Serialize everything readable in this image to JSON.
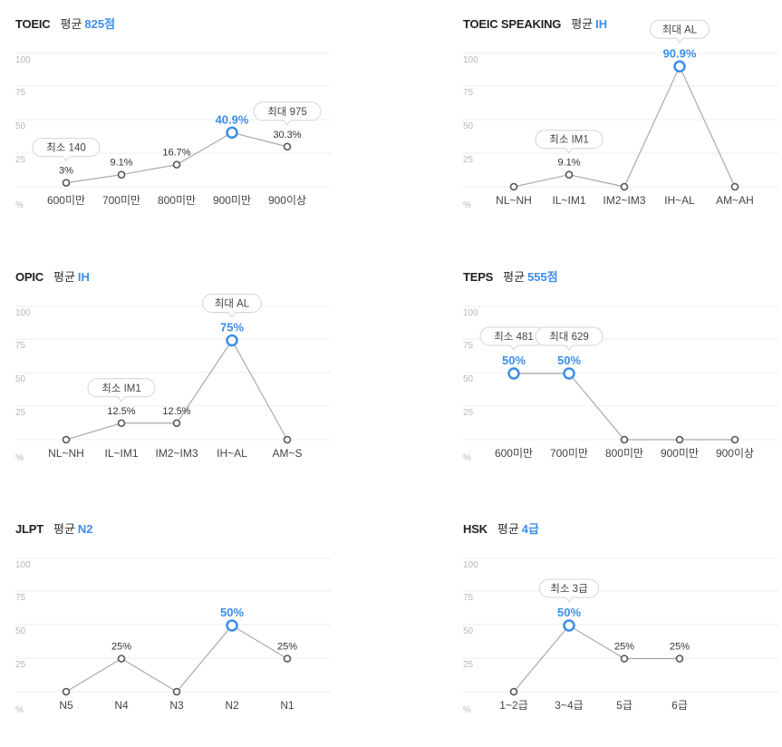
{
  "colors": {
    "accent": "#3b8ee8",
    "line": "#aaaaaa",
    "grid": "#eeeeee",
    "point": "#555555"
  },
  "chart_data": [
    {
      "type": "line",
      "name": "TOEIC",
      "avg_label": "평균",
      "avg_value": "825점",
      "categories": [
        "600미만",
        "700미만",
        "800미만",
        "900미만",
        "900이상"
      ],
      "values": [
        3,
        9.1,
        16.7,
        40.9,
        30.3
      ],
      "value_labels": [
        "3%",
        "9.1%",
        "16.7%",
        "40.9%",
        "30.3%"
      ],
      "highlight_index": 3,
      "yticks": [
        "100",
        "75",
        "50",
        "25"
      ],
      "ylim": [
        0,
        100
      ],
      "unit": "%",
      "callouts": [
        {
          "index": 0,
          "text": "최소 140"
        },
        {
          "index": 4,
          "text": "최대 975"
        }
      ]
    },
    {
      "type": "line",
      "name": "TOEIC SPEAKING",
      "avg_label": "평균",
      "avg_value": "IH",
      "categories": [
        "NL~NH",
        "IL~IM1",
        "IM2~IM3",
        "IH~AL",
        "AM~AH"
      ],
      "values": [
        0,
        9.1,
        0,
        90.9,
        0
      ],
      "value_labels": [
        "",
        "9.1%",
        "",
        "90.9%",
        ""
      ],
      "highlight_index": 3,
      "yticks": [
        "100",
        "75",
        "50",
        "25"
      ],
      "ylim": [
        0,
        100
      ],
      "unit": "%",
      "callouts": [
        {
          "index": 1,
          "text": "최소 IM1"
        },
        {
          "index": 3,
          "text": "최대 AL"
        }
      ]
    },
    {
      "type": "line",
      "name": "OPIC",
      "avg_label": "평균",
      "avg_value": "IH",
      "categories": [
        "NL~NH",
        "IL~IM1",
        "IM2~IM3",
        "IH~AL",
        "AM~S"
      ],
      "values": [
        0,
        12.5,
        12.5,
        75,
        0
      ],
      "value_labels": [
        "",
        "12.5%",
        "12.5%",
        "75%",
        ""
      ],
      "highlight_index": 3,
      "yticks": [
        "100",
        "75",
        "50",
        "25"
      ],
      "ylim": [
        0,
        100
      ],
      "unit": "%",
      "callouts": [
        {
          "index": 1,
          "text": "최소 IM1"
        },
        {
          "index": 3,
          "text": "최대 AL"
        }
      ]
    },
    {
      "type": "line",
      "name": "TEPS",
      "avg_label": "평균",
      "avg_value": "555점",
      "categories": [
        "600미만",
        "700미만",
        "800미만",
        "900미만",
        "900이상"
      ],
      "values": [
        50,
        50,
        0,
        0,
        0
      ],
      "value_labels": [
        "50%",
        "50%",
        "",
        "",
        ""
      ],
      "highlight_indices": [
        0,
        1
      ],
      "yticks": [
        "100",
        "75",
        "50",
        "25"
      ],
      "ylim": [
        0,
        100
      ],
      "unit": "%",
      "callouts": [
        {
          "index": 0,
          "text": "최소 481"
        },
        {
          "index": 1,
          "text": "최대 629"
        }
      ]
    },
    {
      "type": "line",
      "name": "JLPT",
      "avg_label": "평균",
      "avg_value": "N2",
      "categories": [
        "N5",
        "N4",
        "N3",
        "N2",
        "N1"
      ],
      "values": [
        0,
        25,
        0,
        50,
        25
      ],
      "value_labels": [
        "",
        "25%",
        "",
        "50%",
        "25%"
      ],
      "highlight_index": 3,
      "yticks": [
        "100",
        "75",
        "50",
        "25"
      ],
      "ylim": [
        0,
        100
      ],
      "unit": "%",
      "callouts": []
    },
    {
      "type": "line",
      "name": "HSK",
      "avg_label": "평균",
      "avg_value": "4급",
      "categories": [
        "1~2급",
        "3~4급",
        "5급",
        "6급"
      ],
      "values": [
        0,
        50,
        25,
        25
      ],
      "value_labels": [
        "",
        "50%",
        "25%",
        "25%"
      ],
      "highlight_index": 1,
      "yticks": [
        "100",
        "75",
        "50",
        "25"
      ],
      "ylim": [
        0,
        100
      ],
      "unit": "%",
      "callouts": [
        {
          "index": 1,
          "text": "최소 3급"
        }
      ]
    }
  ]
}
